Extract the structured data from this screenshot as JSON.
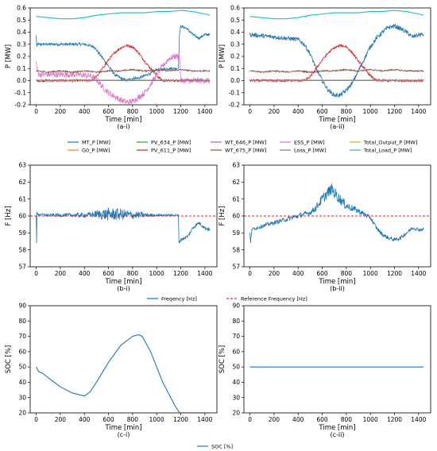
{
  "colors": {
    "MT_P": "#1f77b4",
    "G0_P": "#ff7f0e",
    "PV_634_P": "#2ca02c",
    "PV_611_P": "#d62728",
    "WT_646_P": "#9467bd",
    "WT_675_P": "#8c564b",
    "ESS_P": "#e377c2",
    "Loss_P": "#7f7f7f",
    "Total_Output_P": "#bcbd22",
    "Total_Load_P": "#17becf",
    "freq": "#1f77b4",
    "ref": "#d62728",
    "soc": "#1f77b4"
  },
  "legend_power": [
    {
      "key": "MT_P",
      "label": "MT_P [MW]"
    },
    {
      "key": "PV_634_P",
      "label": "PV_634_P [MW]"
    },
    {
      "key": "WT_646_P",
      "label": "WT_646_P [MW]"
    },
    {
      "key": "ESS_P",
      "label": "ESS_P [MW]"
    },
    {
      "key": "Total_Output_P",
      "label": "Total_Output_P [MW]"
    },
    {
      "key": "G0_P",
      "label": "G0_P [MW]"
    },
    {
      "key": "PV_611_P",
      "label": "PV_611_P [MW]"
    },
    {
      "key": "WT_675_P",
      "label": "WT_675_P [MW]"
    },
    {
      "key": "Loss_P",
      "label": "Loss_P [MW]"
    },
    {
      "key": "Total_Load_P",
      "label": "Total_Load_P [MW]"
    }
  ],
  "legend_freq": [
    {
      "key": "freq",
      "label": "Freqency [Hz]",
      "dash": false
    },
    {
      "key": "ref",
      "label": "Reference Frequency [Hz]",
      "dash": true
    }
  ],
  "legend_soc": [
    {
      "key": "soc",
      "label": "SOC [%]",
      "dash": false
    }
  ],
  "chart_data": [
    {
      "id": "a-i",
      "type": "line",
      "sublabel": "(a-i)",
      "xlabel": "Time [min]",
      "ylabel": "P [MW]",
      "xlim": [
        -50,
        1500
      ],
      "ylim": [
        -0.2,
        0.6
      ],
      "xticks": [
        0,
        200,
        400,
        600,
        800,
        1000,
        1200,
        1400
      ],
      "yticks": [
        -0.2,
        -0.1,
        0.0,
        0.1,
        0.2,
        0.3,
        0.4,
        0.5,
        0.6
      ],
      "series": [
        {
          "key": "Total_Load_P",
          "x": [
            0,
            100,
            200,
            300,
            400,
            500,
            600,
            700,
            800,
            900,
            1000,
            1100,
            1200,
            1300,
            1400,
            1440
          ],
          "y": [
            0.53,
            0.52,
            0.51,
            0.51,
            0.52,
            0.54,
            0.55,
            0.56,
            0.56,
            0.56,
            0.57,
            0.57,
            0.58,
            0.57,
            0.55,
            0.54
          ]
        },
        {
          "key": "MT_P",
          "x": [
            0,
            5,
            10,
            100,
            200,
            300,
            400,
            480,
            540,
            600,
            650,
            700,
            750,
            800,
            850,
            900,
            950,
            1000,
            1100,
            1180,
            1190,
            1200,
            1250,
            1300,
            1350,
            1400,
            1440
          ],
          "y": [
            0.37,
            0.28,
            0.3,
            0.3,
            0.3,
            0.3,
            0.3,
            0.28,
            0.2,
            0.12,
            0.05,
            0.02,
            0.0,
            0.02,
            0.02,
            0.04,
            0.06,
            0.09,
            0.1,
            0.1,
            0.39,
            0.45,
            0.43,
            0.38,
            0.35,
            0.38,
            0.38
          ],
          "noise": 0.012
        },
        {
          "key": "PV_611_P",
          "x": [
            0,
            450,
            500,
            550,
            600,
            650,
            700,
            750,
            800,
            850,
            900,
            950,
            1000,
            1050,
            1440
          ],
          "y": [
            0.0,
            0.0,
            0.03,
            0.1,
            0.17,
            0.23,
            0.27,
            0.29,
            0.28,
            0.23,
            0.16,
            0.1,
            0.04,
            0.0,
            0.0
          ],
          "noise": 0.01
        },
        {
          "key": "ESS_P",
          "x": [
            0,
            10,
            25,
            60,
            150,
            250,
            350,
            450,
            500,
            550,
            600,
            650,
            700,
            750,
            800,
            850,
            900,
            950,
            1000,
            1050,
            1100,
            1150,
            1190,
            1200,
            1440
          ],
          "y": [
            0.15,
            0.08,
            0.05,
            0.05,
            0.05,
            0.05,
            0.05,
            0.04,
            0.01,
            -0.05,
            -0.1,
            -0.13,
            -0.16,
            -0.18,
            -0.17,
            -0.14,
            -0.1,
            -0.03,
            0.05,
            0.12,
            0.18,
            0.2,
            0.2,
            0.0,
            0.0
          ],
          "noise": 0.025
        },
        {
          "key": "WT_675_P",
          "x": [
            0,
            100,
            200,
            300,
            400,
            500,
            600,
            700,
            800,
            900,
            1000,
            1100,
            1200,
            1300,
            1400,
            1440
          ],
          "y": [
            0.08,
            0.07,
            0.08,
            0.07,
            0.08,
            0.07,
            0.08,
            0.08,
            0.09,
            0.08,
            0.09,
            0.08,
            0.09,
            0.08,
            0.08,
            0.08
          ],
          "noise": 0.006
        },
        {
          "key": "G0_P",
          "x": [
            0,
            1440
          ],
          "y": [
            0.0,
            0.0
          ]
        },
        {
          "key": "Loss_P",
          "x": [
            0,
            1440
          ],
          "y": [
            0.003,
            0.003
          ]
        }
      ]
    },
    {
      "id": "a-ii",
      "type": "line",
      "sublabel": "(a-ii)",
      "xlabel": "Time [min]",
      "ylabel": "P [MW]",
      "xlim": [
        -50,
        1500
      ],
      "ylim": [
        -0.2,
        0.6
      ],
      "xticks": [
        0,
        200,
        400,
        600,
        800,
        1000,
        1200,
        1400
      ],
      "yticks": [
        -0.2,
        -0.1,
        0.0,
        0.1,
        0.2,
        0.3,
        0.4,
        0.5,
        0.6
      ],
      "series": [
        {
          "key": "Total_Load_P",
          "x": [
            0,
            100,
            200,
            300,
            400,
            500,
            600,
            700,
            800,
            900,
            1000,
            1100,
            1200,
            1300,
            1400,
            1440
          ],
          "y": [
            0.53,
            0.52,
            0.51,
            0.51,
            0.52,
            0.54,
            0.55,
            0.56,
            0.56,
            0.56,
            0.57,
            0.57,
            0.58,
            0.57,
            0.55,
            0.54
          ]
        },
        {
          "key": "MT_P",
          "x": [
            0,
            100,
            200,
            300,
            400,
            450,
            500,
            550,
            600,
            650,
            700,
            750,
            800,
            850,
            900,
            950,
            1000,
            1050,
            1100,
            1150,
            1200,
            1250,
            1300,
            1350,
            1400,
            1440
          ],
          "y": [
            0.38,
            0.37,
            0.36,
            0.35,
            0.34,
            0.3,
            0.22,
            0.1,
            0.0,
            -0.08,
            -0.12,
            -0.12,
            -0.08,
            -0.02,
            0.08,
            0.18,
            0.28,
            0.35,
            0.4,
            0.44,
            0.45,
            0.43,
            0.4,
            0.36,
            0.38,
            0.38
          ],
          "noise": 0.018
        },
        {
          "key": "PV_611_P",
          "x": [
            0,
            450,
            500,
            550,
            600,
            650,
            700,
            750,
            800,
            850,
            900,
            950,
            1000,
            1050,
            1440
          ],
          "y": [
            0.0,
            0.0,
            0.03,
            0.1,
            0.17,
            0.23,
            0.27,
            0.29,
            0.28,
            0.23,
            0.16,
            0.1,
            0.04,
            0.0,
            0.0
          ],
          "noise": 0.01
        },
        {
          "key": "WT_675_P",
          "x": [
            0,
            100,
            200,
            300,
            400,
            500,
            600,
            700,
            800,
            900,
            1000,
            1100,
            1200,
            1300,
            1400,
            1440
          ],
          "y": [
            0.08,
            0.07,
            0.08,
            0.07,
            0.08,
            0.07,
            0.08,
            0.08,
            0.09,
            0.08,
            0.09,
            0.08,
            0.09,
            0.08,
            0.08,
            0.08
          ],
          "noise": 0.006
        },
        {
          "key": "G0_P",
          "x": [
            0,
            1440
          ],
          "y": [
            0.0,
            0.0
          ]
        },
        {
          "key": "Loss_P",
          "x": [
            0,
            1440
          ],
          "y": [
            0.003,
            0.003
          ]
        }
      ]
    },
    {
      "id": "b-i",
      "type": "line",
      "sublabel": "(b-i)",
      "xlabel": "Time [min]",
      "ylabel": "F [Hz]",
      "xlim": [
        -50,
        1500
      ],
      "ylim": [
        57,
        63
      ],
      "xticks": [
        0,
        200,
        400,
        600,
        800,
        1000,
        1200,
        1400
      ],
      "yticks": [
        57,
        58,
        59,
        60,
        61,
        62,
        63
      ],
      "series": [
        {
          "key": "freq",
          "x": [
            0,
            3,
            6,
            10,
            100,
            300,
            400,
            500,
            600,
            650,
            700,
            800,
            900,
            1000,
            1100,
            1180,
            1185,
            1200,
            1260,
            1300,
            1350,
            1400,
            1440
          ],
          "y": [
            60.0,
            58.4,
            60.2,
            60.1,
            60.05,
            60.05,
            60.05,
            60.1,
            60.1,
            60.1,
            60.1,
            60.05,
            60.05,
            60.05,
            60.05,
            60.05,
            58.4,
            58.6,
            58.8,
            59.3,
            59.6,
            59.3,
            59.2
          ],
          "noise": 0.08,
          "noisemap": [
            [
              0,
              0.06
            ],
            [
              450,
              0.15
            ],
            [
              600,
              0.4
            ],
            [
              700,
              0.35
            ],
            [
              850,
              0.2
            ],
            [
              1000,
              0.06
            ],
            [
              1180,
              0.06
            ],
            [
              1190,
              0.1
            ],
            [
              1440,
              0.1
            ]
          ]
        },
        {
          "key": "ref",
          "dash": true,
          "x": [
            -50,
            1500
          ],
          "y": [
            60,
            60
          ]
        }
      ]
    },
    {
      "id": "b-ii",
      "type": "line",
      "sublabel": "(b-ii)",
      "xlabel": "Time [min]",
      "ylabel": "F [Hz]",
      "xlim": [
        -50,
        1500
      ],
      "ylim": [
        57,
        63
      ],
      "xticks": [
        0,
        200,
        400,
        600,
        800,
        1000,
        1200,
        1400
      ],
      "yticks": [
        57,
        58,
        59,
        60,
        61,
        62,
        63
      ],
      "series": [
        {
          "key": "freq",
          "x": [
            0,
            5,
            15,
            100,
            200,
            300,
            400,
            500,
            550,
            600,
            650,
            680,
            720,
            800,
            900,
            1000,
            1050,
            1100,
            1150,
            1200,
            1250,
            1300,
            1350,
            1400,
            1440
          ],
          "y": [
            59.0,
            58.4,
            59.2,
            59.4,
            59.6,
            59.8,
            60.0,
            60.2,
            60.5,
            61.0,
            61.4,
            61.6,
            61.2,
            60.6,
            60.3,
            59.9,
            59.3,
            58.9,
            58.7,
            58.6,
            58.7,
            59.0,
            59.3,
            59.2,
            59.2
          ],
          "noise": 0.12,
          "noisemap": [
            [
              0,
              0.1
            ],
            [
              500,
              0.15
            ],
            [
              600,
              0.3
            ],
            [
              700,
              0.35
            ],
            [
              850,
              0.2
            ],
            [
              1000,
              0.12
            ],
            [
              1440,
              0.1
            ]
          ]
        },
        {
          "key": "ref",
          "dash": true,
          "x": [
            -50,
            1500
          ],
          "y": [
            60,
            60
          ]
        }
      ]
    },
    {
      "id": "c-i",
      "type": "line",
      "sublabel": "(c-i)",
      "xlabel": "Time [min]",
      "ylabel": "SOC [%]",
      "xlim": [
        -50,
        1500
      ],
      "ylim": [
        20,
        90
      ],
      "xticks": [
        0,
        200,
        400,
        600,
        800,
        1000,
        1200,
        1400
      ],
      "yticks": [
        20,
        30,
        40,
        50,
        60,
        70,
        80,
        90
      ],
      "series": [
        {
          "key": "soc",
          "x": [
            0,
            20,
            50,
            100,
            200,
            300,
            400,
            450,
            500,
            600,
            700,
            800,
            850,
            880,
            950,
            1050,
            1150,
            1190,
            1200,
            1440
          ],
          "y": [
            50,
            47,
            46,
            43,
            37,
            33,
            31,
            34,
            40,
            53,
            64,
            70,
            71,
            70,
            60,
            40,
            25,
            20,
            20,
            20
          ]
        }
      ]
    },
    {
      "id": "c-ii",
      "type": "line",
      "sublabel": "(c-ii)",
      "xlabel": "Time [min]",
      "ylabel": "SOC [%]",
      "xlim": [
        -50,
        1500
      ],
      "ylim": [
        20,
        90
      ],
      "xticks": [
        0,
        200,
        400,
        600,
        800,
        1000,
        1200,
        1400
      ],
      "yticks": [
        20,
        30,
        40,
        50,
        60,
        70,
        80,
        90
      ],
      "series": [
        {
          "key": "soc",
          "x": [
            0,
            1440
          ],
          "y": [
            50,
            50
          ]
        }
      ]
    }
  ]
}
